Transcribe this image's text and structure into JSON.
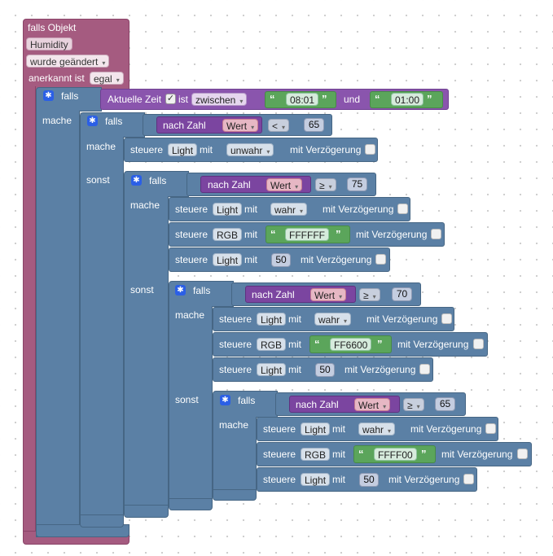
{
  "trigger": {
    "title": "falls Objekt",
    "object_id": "Humidity",
    "event": "wurde geändert",
    "ack_label": "anerkannt ist",
    "ack_value": "egal"
  },
  "labels": {
    "falls": "falls",
    "mache": "mache",
    "sonst": "sonst",
    "nach_zahl": "nach Zahl",
    "wert": "Wert",
    "steuere": "steuere",
    "mit": "mit",
    "mit_verzoegerung": "mit Verzögerung"
  },
  "time_condition": {
    "label": "Aktuelle Zeit",
    "ist": "ist",
    "mode": "zwischen",
    "start": "08:01",
    "und": "und",
    "end": "01:00"
  },
  "cond1": {
    "operator": "<",
    "value": "65"
  },
  "do1": {
    "target": "Light",
    "value": "unwahr"
  },
  "cond2": {
    "operator": "≥",
    "value": "75"
  },
  "do2": [
    {
      "target": "Light",
      "value": "wahr"
    },
    {
      "target": "RGB",
      "value": "FFFFFF"
    },
    {
      "target": "Light",
      "value": "50"
    }
  ],
  "cond3": {
    "operator": "≥",
    "value": "70"
  },
  "do3": [
    {
      "target": "Light",
      "value": "wahr"
    },
    {
      "target": "RGB",
      "value": "FF6600"
    },
    {
      "target": "Light",
      "value": "50"
    }
  ],
  "cond4": {
    "operator": "≥",
    "value": "65"
  },
  "do4": [
    {
      "target": "Light",
      "value": "wahr"
    },
    {
      "target": "RGB",
      "value": "FFFF00"
    },
    {
      "target": "Light",
      "value": "50"
    }
  ],
  "colors": {
    "trigger_block": "#a55b80",
    "logic_block": "#5b80a5",
    "math_block": "#8a55ad",
    "text_block": "#5ba55b",
    "gear_icon": "#2b5fe6"
  }
}
